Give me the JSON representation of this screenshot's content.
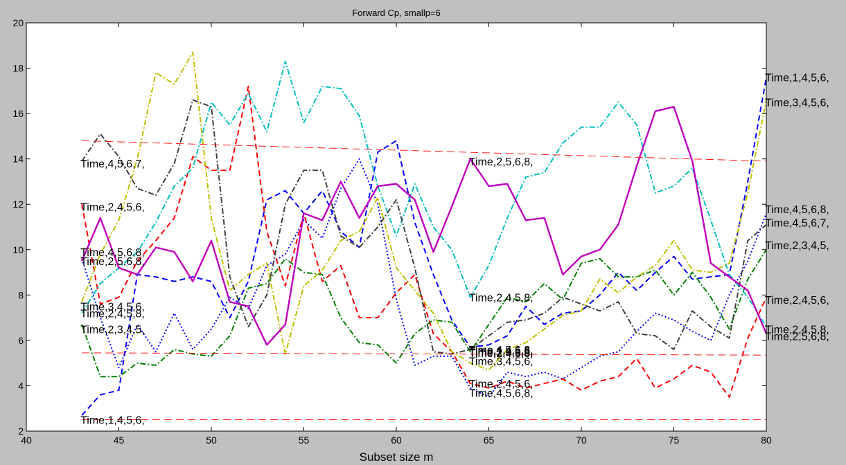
{
  "chart_data": {
    "type": "line",
    "title": "Forward Cp, smallp=6",
    "xlabel": "Subset size m",
    "ylabel": "",
    "xlim": [
      40,
      80
    ],
    "ylim": [
      2,
      20
    ],
    "xticks": [
      40,
      45,
      50,
      55,
      60,
      65,
      70,
      75,
      80
    ],
    "yticks": [
      2,
      4,
      6,
      8,
      10,
      12,
      14,
      16,
      18,
      20
    ],
    "grid": false,
    "series": [
      {
        "color": "#0000ff",
        "dash": "8,5",
        "x": [
          43,
          44,
          45,
          46,
          47,
          48,
          49,
          50,
          51,
          52,
          53,
          54,
          55,
          56,
          57,
          58,
          59,
          60,
          61,
          62,
          63,
          64,
          65,
          66,
          67,
          68,
          69,
          70,
          71,
          72,
          73,
          74,
          75,
          76,
          77,
          78,
          79,
          80
        ],
        "y": [
          2.7,
          3.6,
          3.8,
          8.9,
          8.8,
          8.6,
          8.8,
          8.6,
          7.0,
          8.6,
          12.2,
          12.6,
          11.6,
          12.6,
          10.8,
          10.1,
          14.3,
          14.8,
          11.2,
          8.9,
          6.9,
          5.7,
          5.8,
          6.2,
          7.5,
          6.7,
          7.2,
          7.3,
          8.0,
          9.0,
          8.2,
          9.0,
          9.7,
          8.7,
          8.8,
          8.9,
          13.0,
          17.6
        ]
      },
      {
        "color": "#0000ff",
        "dash": "2,3",
        "x": [
          43,
          44,
          45,
          46,
          47,
          48,
          49,
          50,
          51,
          52,
          53,
          54,
          55,
          56,
          57,
          58,
          59,
          60,
          61,
          62,
          63,
          64,
          65,
          66,
          67,
          68,
          69,
          70,
          71,
          72,
          73,
          74,
          75,
          76,
          77,
          78,
          79,
          80
        ],
        "y": [
          9.6,
          7.0,
          4.8,
          6.7,
          5.5,
          7.2,
          5.6,
          6.5,
          7.9,
          7.4,
          9.3,
          9.8,
          11.3,
          10.5,
          12.7,
          14.0,
          12.0,
          7.8,
          4.9,
          5.3,
          5.3,
          3.9,
          3.5,
          4.6,
          4.4,
          4.6,
          4.3,
          4.8,
          5.3,
          5.5,
          6.4,
          7.2,
          6.9,
          6.4,
          6.0,
          8.0,
          9.5,
          11.6
        ]
      },
      {
        "color": "#ff0000",
        "dash": "8,5",
        "x": [
          43,
          44,
          45,
          46,
          47,
          48,
          49,
          50,
          51,
          52,
          53,
          54,
          55,
          56,
          57,
          58,
          59,
          60,
          61,
          62,
          63,
          64,
          65,
          66,
          67,
          68,
          69,
          70,
          71,
          72,
          73,
          74,
          75,
          76,
          77,
          78,
          79,
          80
        ],
        "y": [
          12.0,
          7.6,
          7.9,
          9.5,
          10.4,
          11.4,
          14.1,
          13.5,
          13.5,
          17.2,
          10.8,
          8.4,
          11.6,
          8.6,
          9.3,
          7.0,
          7.0,
          8.1,
          8.9,
          6.3,
          5.5,
          4.1,
          3.9,
          4.2,
          3.9,
          4.1,
          4.3,
          3.8,
          4.2,
          4.4,
          5.2,
          3.9,
          4.3,
          4.9,
          4.6,
          3.5,
          6.1,
          7.9
        ]
      },
      {
        "color": "#008000",
        "dash": "8,3,2,3",
        "x": [
          43,
          44,
          45,
          46,
          47,
          48,
          49,
          50,
          51,
          52,
          53,
          54,
          55,
          56,
          57,
          58,
          59,
          60,
          61,
          62,
          63,
          64,
          65,
          66,
          67,
          68,
          69,
          70,
          71,
          72,
          73,
          74,
          75,
          76,
          77,
          78,
          79,
          80
        ],
        "y": [
          6.7,
          4.4,
          4.4,
          5.0,
          4.9,
          5.6,
          5.4,
          5.3,
          6.2,
          8.3,
          8.5,
          9.6,
          9.0,
          8.9,
          7.0,
          5.9,
          5.8,
          5.0,
          6.3,
          6.9,
          6.8,
          5.5,
          6.7,
          7.9,
          7.7,
          8.5,
          7.8,
          9.4,
          9.6,
          8.8,
          8.8,
          9.1,
          8.0,
          9.0,
          7.9,
          6.5,
          8.7,
          10.0
        ]
      },
      {
        "color": "#00bfbf",
        "dash": "8,3,2,3",
        "x": [
          43,
          44,
          45,
          46,
          47,
          48,
          49,
          50,
          51,
          52,
          53,
          54,
          55,
          56,
          57,
          58,
          59,
          60,
          61,
          62,
          63,
          64,
          65,
          66,
          67,
          68,
          69,
          70,
          71,
          72,
          73,
          74,
          75,
          76,
          77,
          78,
          79,
          80
        ],
        "y": [
          7.2,
          8.5,
          9.2,
          9.9,
          11.2,
          12.8,
          13.6,
          16.5,
          15.5,
          16.9,
          15.2,
          18.3,
          15.6,
          17.2,
          17.1,
          15.9,
          12.8,
          10.6,
          12.9,
          11.0,
          10.0,
          7.9,
          9.3,
          11.4,
          13.2,
          13.4,
          14.7,
          15.4,
          15.4,
          16.5,
          15.5,
          12.5,
          12.8,
          13.6,
          11.3,
          8.9,
          7.9,
          6.6
        ]
      },
      {
        "color": "#bfbf00",
        "dash": "8,3,2,3",
        "x": [
          43,
          44,
          45,
          46,
          47,
          48,
          49,
          50,
          51,
          52,
          53,
          54,
          55,
          56,
          57,
          58,
          59,
          60,
          61,
          62,
          63,
          64,
          65,
          66,
          67,
          68,
          69,
          70,
          71,
          72,
          73,
          74,
          75,
          76,
          77,
          78,
          79,
          80
        ],
        "y": [
          7.7,
          9.8,
          11.3,
          14.0,
          17.8,
          17.3,
          18.7,
          11.4,
          8.2,
          8.9,
          9.4,
          5.4,
          8.4,
          9.1,
          10.4,
          10.8,
          12.3,
          9.2,
          8.2,
          7.2,
          5.5,
          5.0,
          4.7,
          5.6,
          5.9,
          6.5,
          7.1,
          7.3,
          8.7,
          8.1,
          8.8,
          9.3,
          10.4,
          9.1,
          9.0,
          9.4,
          12.5,
          16.6
        ]
      },
      {
        "color": "#404040",
        "dash": "8,3,2,3",
        "x": [
          43,
          44,
          45,
          46,
          47,
          48,
          49,
          50,
          51,
          52,
          53,
          54,
          55,
          56,
          57,
          58,
          59,
          60,
          61,
          62,
          63,
          64,
          65,
          66,
          67,
          68,
          69,
          70,
          71,
          72,
          73,
          74,
          75,
          76,
          77,
          78,
          79,
          80
        ],
        "y": [
          13.9,
          15.1,
          14.1,
          12.7,
          12.4,
          13.8,
          16.6,
          16.3,
          8.8,
          6.6,
          8.0,
          12.0,
          13.5,
          13.5,
          10.6,
          10.1,
          11.0,
          12.2,
          9.2,
          5.5,
          5.4,
          5.6,
          6.2,
          6.8,
          6.9,
          7.2,
          7.9,
          7.6,
          7.3,
          7.7,
          6.3,
          6.2,
          5.6,
          7.3,
          6.6,
          6.1,
          10.4,
          11.1
        ]
      },
      {
        "color": "#bf00bf",
        "dash": "none",
        "width": 2.4,
        "x": [
          43,
          44,
          45,
          46,
          47,
          48,
          49,
          50,
          51,
          52,
          53,
          54,
          55,
          56,
          57,
          58,
          59,
          60,
          61,
          62,
          63,
          64,
          65,
          66,
          67,
          68,
          69,
          70,
          71,
          72,
          73,
          74,
          75,
          76,
          77,
          78,
          79,
          80
        ],
        "y": [
          9.5,
          11.4,
          9.2,
          8.9,
          10.1,
          9.9,
          8.6,
          10.4,
          7.7,
          7.5,
          5.8,
          6.7,
          11.6,
          11.3,
          13.0,
          11.4,
          12.8,
          12.9,
          12.2,
          9.9,
          11.9,
          14.0,
          12.8,
          12.9,
          11.3,
          11.4,
          8.9,
          9.7,
          10.0,
          11.1,
          13.7,
          16.1,
          16.3,
          13.9,
          9.4,
          8.8,
          8.2,
          6.3
        ]
      },
      {
        "color": "#ff0000",
        "dash": "11,6",
        "width": 0.9,
        "x": [
          43,
          80
        ],
        "y": [
          14.8,
          13.9
        ]
      },
      {
        "color": "#ff0000",
        "dash": "11,6",
        "width": 0.9,
        "x": [
          43,
          80
        ],
        "y": [
          5.45,
          5.35
        ]
      },
      {
        "color": "#ff0000",
        "dash": "11,6",
        "width": 0.9,
        "x": [
          43,
          80
        ],
        "y": [
          2.5,
          2.5
        ]
      }
    ],
    "annotations": [
      {
        "text": "Time,4,5,6,7,",
        "x": 43,
        "y": 13.8
      },
      {
        "text": "Time,2,4,5,6,",
        "x": 43,
        "y": 11.9
      },
      {
        "text": "Time,4,5,6,8,",
        "x": 43,
        "y": 9.9
      },
      {
        "text": "Time,2,5,6,8,",
        "x": 43,
        "y": 9.5
      },
      {
        "text": "Time,3,4,5,6,",
        "x": 43,
        "y": 7.5
      },
      {
        "text": "Time,2,4,5,8,",
        "x": 43,
        "y": 7.2
      },
      {
        "text": "Time,2,3,4,5,",
        "x": 43,
        "y": 6.5
      },
      {
        "text": "Time,1,4,5,6,",
        "x": 43,
        "y": 2.5
      },
      {
        "text": "Time,2,5,6,8,",
        "x": 64,
        "y": 13.9
      },
      {
        "text": "Time,2,4,5,8,",
        "x": 64,
        "y": 7.9
      },
      {
        "text": "Time,4,5,6,8,",
        "x": 64,
        "y": 5.6
      },
      {
        "text": "Time,1,4,5,6,",
        "x": 64,
        "y": 5.55
      },
      {
        "text": "Time,2,5,6,8,",
        "x": 64,
        "y": 5.5
      },
      {
        "text": "Time,2,4,5,8,",
        "x": 64,
        "y": 5.45
      },
      {
        "text": "Time,3,4,5,6,",
        "x": 64,
        "y": 5.1
      },
      {
        "text": "Time,2,4,5,6,",
        "x": 64,
        "y": 4.1
      },
      {
        "text": "Time,4,5,6,8,",
        "x": 64,
        "y": 3.7
      },
      {
        "text": "Time,1,4,5,6,",
        "x": 80,
        "y": 17.6
      },
      {
        "text": "Time,3,4,5,6,",
        "x": 80,
        "y": 16.5
      },
      {
        "text": "Time,4,5,6,8,",
        "x": 80,
        "y": 11.8
      },
      {
        "text": "Time,4,5,6,7,",
        "x": 80,
        "y": 11.2
      },
      {
        "text": "Time,2,3,4,5,",
        "x": 80,
        "y": 10.2
      },
      {
        "text": "Time,2,4,5,6,",
        "x": 80,
        "y": 7.8
      },
      {
        "text": "Time,2,4,5,8,",
        "x": 80,
        "y": 6.5
      },
      {
        "text": "Time,2,5,6,8,",
        "x": 80,
        "y": 6.2
      }
    ]
  }
}
